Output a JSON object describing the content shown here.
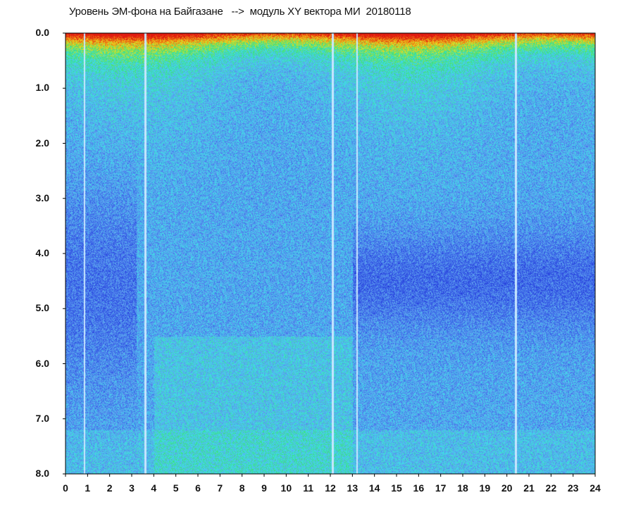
{
  "title": "Уровень ЭМ-фона на Байгазане   -->  модуль XY вектора МИ  20180118",
  "chart_data": {
    "type": "heatmap",
    "title": "Уровень ЭМ-фона на Байгазане   -->  модуль XY вектора МИ  20180118",
    "xlabel": "",
    "ylabel": "",
    "xlim": [
      0,
      24
    ],
    "ylim": [
      8.0,
      0.0
    ],
    "y_axis_inverted": true,
    "x_ticks": [
      "0",
      "1",
      "2",
      "3",
      "4",
      "5",
      "6",
      "7",
      "8",
      "9",
      "10",
      "11",
      "12",
      "13",
      "14",
      "15",
      "16",
      "17",
      "18",
      "19",
      "20",
      "21",
      "22",
      "23",
      "24"
    ],
    "y_ticks": [
      "0.0",
      "1.0",
      "2.0",
      "3.0",
      "4.0",
      "5.0",
      "6.0",
      "7.0",
      "8.0"
    ],
    "colormap": [
      "#1f2fd6",
      "#3a63e8",
      "#5fa0ef",
      "#3fdcea",
      "#3ce07a",
      "#e8e020",
      "#f07a10",
      "#e01a10"
    ],
    "grid": false,
    "legend": "none",
    "features": {
      "high_level_band_y": [
        0.0,
        0.6
      ],
      "gap_lines_x": [
        0.85,
        3.6,
        12.1,
        13.2,
        20.4
      ]
    }
  }
}
